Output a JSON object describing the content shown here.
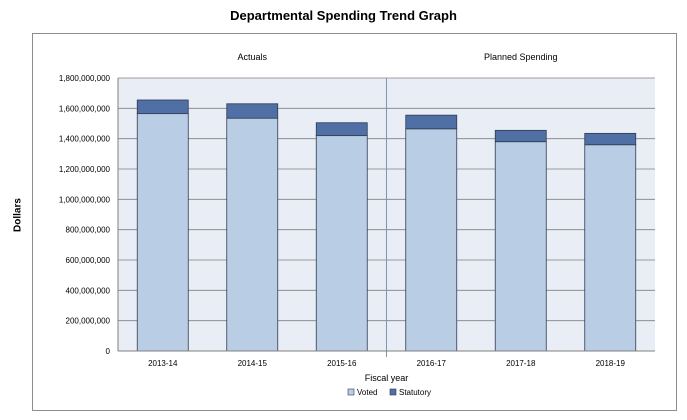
{
  "chart_data": {
    "type": "bar",
    "stacked": true,
    "title": "Departmental Spending Trend Graph",
    "ylabel": "Dollars",
    "xlabel": "Fiscal year",
    "categories": [
      "2013-14",
      "2014-15",
      "2015-16",
      "2016-17",
      "2017-18",
      "2018-19"
    ],
    "series": [
      {
        "name": "Voted",
        "values": [
          1565000000,
          1535000000,
          1420000000,
          1465000000,
          1380000000,
          1360000000
        ]
      },
      {
        "name": "Statutory",
        "values": [
          90000000,
          95000000,
          85000000,
          90000000,
          75000000,
          75000000
        ]
      }
    ],
    "ylim": [
      0,
      1800000000
    ],
    "yticks": [
      0,
      200000000,
      400000000,
      600000000,
      800000000,
      1000000000,
      1200000000,
      1400000000,
      1600000000,
      1800000000
    ],
    "ytick_labels": [
      "0",
      "200,000,000",
      "400,000,000",
      "600,000,000",
      "800,000,000",
      "1,000,000,000",
      "1,200,000,000",
      "1,400,000,000",
      "1,600,000,000",
      "1,800,000,000"
    ],
    "sections": [
      {
        "label": "Actuals",
        "from": 0,
        "to": 2
      },
      {
        "label": "Planned Spending",
        "from": 3,
        "to": 5
      }
    ],
    "legend": [
      "Voted",
      "Statutory"
    ],
    "legend_position": "bottom-center",
    "grid": true
  },
  "colors": {
    "voted": "#b9cde5",
    "statutory": "#4f6fa5",
    "plot_bg": "#e9edf5",
    "grid": "#808080",
    "bar_edge": "#2f3b52"
  }
}
